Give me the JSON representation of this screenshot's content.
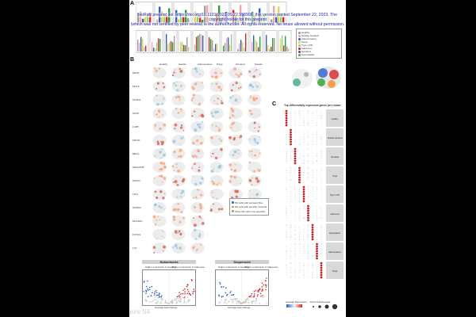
{
  "notice": {
    "line1": "bioRxiv preprint doi: https://doi.org/10.1101/2023.09.22.558998; this version posted September 22, 2023. The copyright holder for this preprint",
    "line2": "(which was not certified by peer review) is the author/funder. All rights reserved. No reuse allowed without permission."
  },
  "footer": "gure S4",
  "panels": {
    "a": "A",
    "b": "B",
    "c": "C"
  },
  "legend_a": {
    "items": [
      {
        "label": "Healthy",
        "color": "#9e9e9e"
      },
      {
        "label": "Sessile serrated",
        "color": "#f4a6a0"
      },
      {
        "label": "Adenomatous",
        "color": "#3a5fcd"
      },
      {
        "label": "Polyp",
        "color": "#e8d14a"
      },
      {
        "label": "Type 1 PD",
        "color": "#8fd18f"
      },
      {
        "label": "Adenoma",
        "color": "#d62728"
      },
      {
        "label": "Serrated",
        "color": "#8b3a8b"
      },
      {
        "label": "Hyperplastic",
        "color": "#4caf50"
      }
    ]
  },
  "genes": [
    "MKI67",
    "MUC2",
    "OLFM4",
    "SOX9",
    "LGR5",
    "KRT20",
    "REG4",
    "CEACAM5",
    "ANXA1",
    "TFF1",
    "SPINK4",
    "MUC5AC",
    "FOXQ1",
    "LYZ"
  ],
  "column_headers": [
    "Healthy",
    "Sessile",
    "Adenomatous",
    "Polyp",
    "Serrated",
    "Sessile"
  ],
  "heatmap": {
    "title": "Top differentially expressed genes per cluster",
    "clusters": [
      "Healthy",
      "Sessile serrated",
      "Serrated",
      "Crypt",
      "Type 1 PD",
      "Adenoma",
      "Hyperplastic",
      "Adenomatous",
      "Polyp"
    ],
    "colorbar_title": "Average Expression",
    "size_title": "Percent Expressed"
  },
  "umap_legend": {
    "items": [
      {
        "label": "NK cells with serrated Ros",
        "color": "#1f77b4"
      },
      {
        "label": "NK cells with specific mucosal",
        "color": "#ff7f0e"
      },
      {
        "label": "Other NK cells (non-specific)",
        "color": "#9e9e9e"
      }
    ]
  },
  "volcano_left": {
    "title": "Subsetsorts",
    "left_label": "Higher expression in Healthy",
    "right_label": "Higher expression in Adenoma",
    "xlabel": "Average log2 change",
    "ylabel": "-log10 adjusted p-value"
  },
  "volcano_right": {
    "title": "Sequenced",
    "left_label": "Higher expression in Healthy",
    "right_label": "Higher expression in Adenoma",
    "xlabel": "Average log2 change",
    "ylabel": "-log10 adjusted p-value"
  },
  "colors": {
    "red": "#d62728",
    "blue": "#2c5fcd",
    "green": "#2ca02c",
    "gray": "#9e9e9e",
    "page": "#ffffff",
    "bg": "#000000"
  }
}
